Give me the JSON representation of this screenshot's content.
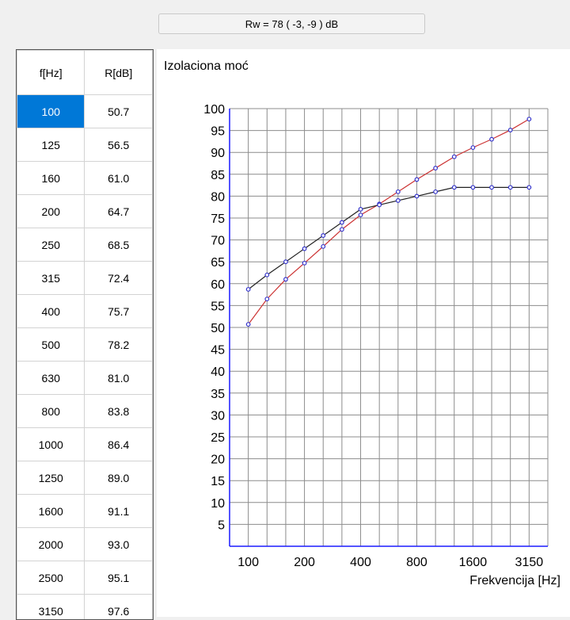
{
  "rw_label": "Rw = 78 ( -3, -9 ) dB",
  "table": {
    "headers": [
      "f[Hz]",
      "R[dB]"
    ],
    "selected_row": 0,
    "rows": [
      [
        "100",
        "50.7"
      ],
      [
        "125",
        "56.5"
      ],
      [
        "160",
        "61.0"
      ],
      [
        "200",
        "64.7"
      ],
      [
        "250",
        "68.5"
      ],
      [
        "315",
        "72.4"
      ],
      [
        "400",
        "75.7"
      ],
      [
        "500",
        "78.2"
      ],
      [
        "630",
        "81.0"
      ],
      [
        "800",
        "83.8"
      ],
      [
        "1000",
        "86.4"
      ],
      [
        "1250",
        "89.0"
      ],
      [
        "1600",
        "91.1"
      ],
      [
        "2000",
        "93.0"
      ],
      [
        "2500",
        "95.1"
      ],
      [
        "3150",
        "97.6"
      ]
    ]
  },
  "chart_data": {
    "type": "line",
    "title": "Izolaciona moć",
    "xlabel": "Frekvencija [Hz]",
    "ylabel": "",
    "categories": [
      "100",
      "125",
      "160",
      "200",
      "250",
      "315",
      "400",
      "500",
      "630",
      "800",
      "1000",
      "1250",
      "1600",
      "2000",
      "2500",
      "3150"
    ],
    "x_tick_labels": [
      "100",
      "200",
      "400",
      "800",
      "1600",
      "3150"
    ],
    "y_tick_labels": [
      "5",
      "10",
      "15",
      "20",
      "25",
      "30",
      "35",
      "40",
      "45",
      "50",
      "55",
      "60",
      "65",
      "70",
      "75",
      "80",
      "85",
      "90",
      "95",
      "100"
    ],
    "ylim": [
      0,
      100
    ],
    "grid": true,
    "series": [
      {
        "color": "#cc3333",
        "values": [
          50.7,
          56.5,
          61.0,
          64.7,
          68.5,
          72.4,
          75.7,
          78.2,
          81.0,
          83.8,
          86.4,
          89.0,
          91.1,
          93.0,
          95.1,
          97.6
        ]
      },
      {
        "color": "#222222",
        "values": [
          58.7,
          62.0,
          65.0,
          68.0,
          71.0,
          74.0,
          77.0,
          78.0,
          79.0,
          80.0,
          81.0,
          82.0,
          82.0,
          82.0,
          82.0,
          82.0
        ]
      }
    ],
    "marker_color": "#3333cc"
  }
}
